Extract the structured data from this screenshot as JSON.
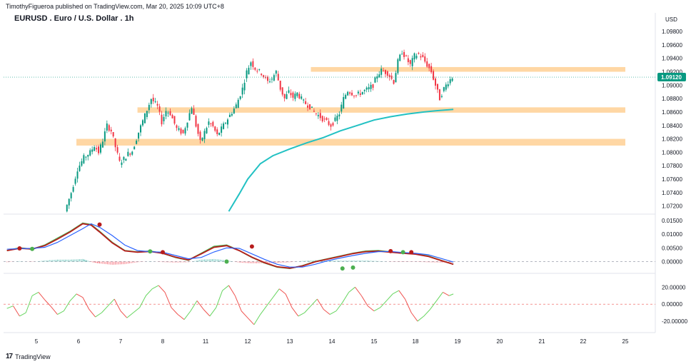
{
  "header": {
    "publisher_line": "TimothyFigueroa published on TradingView.com, Mar 20, 2025 10:09 UTC+8",
    "symbol_title": "EURUSD . Euro / U.S. Dollar . 1h"
  },
  "footer": {
    "brand": "TradingView",
    "logo_glyph": "17"
  },
  "colors": {
    "up_candle": "#089981",
    "down_candle": "#f23645",
    "zone": "#ffd39a",
    "ma_line": "#22c1c3",
    "osc_green": "#4caf50",
    "osc_red": "#b71c1c",
    "osc_blue": "#2962ff",
    "last_price_bg": "#089981"
  },
  "chart_data": [
    {
      "type": "candlestick",
      "title": "EURUSD . Euro / U.S. Dollar . 1h",
      "currency": "USD",
      "ylim": [
        1.071,
        1.0995
      ],
      "y_ticks": [
        "1.09800",
        "1.09600",
        "1.09400",
        "1.09200",
        "1.09000",
        "1.08800",
        "1.08600",
        "1.08400",
        "1.08200",
        "1.08000",
        "1.07800",
        "1.07600",
        "1.07400",
        "1.07200"
      ],
      "last_price": "1.09120",
      "x_ticks": [
        "5",
        "6",
        "7",
        "8",
        "11",
        "12",
        "13",
        "14",
        "15",
        "18",
        "19",
        "20",
        "21",
        "22",
        "25"
      ],
      "zones": [
        {
          "from_day": 11.5,
          "to_day": 21.7,
          "low": 1.092,
          "high": 1.0927
        },
        {
          "from_day": 7.4,
          "to_day": 21.7,
          "low": 1.0859,
          "high": 1.0867
        },
        {
          "from_day": 5.95,
          "to_day": 21.7,
          "low": 1.081,
          "high": 1.082
        }
      ],
      "price_path": [
        [
          5.7,
          1.0712
        ],
        [
          5.85,
          1.074
        ],
        [
          6.0,
          1.0775
        ],
        [
          6.15,
          1.0792
        ],
        [
          6.3,
          1.08
        ],
        [
          6.4,
          1.081
        ],
        [
          6.5,
          1.08
        ],
        [
          6.6,
          1.0818
        ],
        [
          6.7,
          1.084
        ],
        [
          6.8,
          1.0832
        ],
        [
          6.9,
          1.0808
        ],
        [
          7.0,
          1.0785
        ],
        [
          7.1,
          1.079
        ],
        [
          7.2,
          1.0798
        ],
        [
          7.3,
          1.0802
        ],
        [
          7.45,
          1.083
        ],
        [
          7.6,
          1.0855
        ],
        [
          7.75,
          1.088
        ],
        [
          7.9,
          1.0868
        ],
        [
          8.0,
          1.0845
        ],
        [
          8.1,
          1.0862
        ],
        [
          8.2,
          1.0858
        ],
        [
          8.35,
          1.0835
        ],
        [
          8.5,
          1.0828
        ],
        [
          8.6,
          1.0848
        ],
        [
          8.7,
          1.0868
        ],
        [
          8.8,
          1.084
        ],
        [
          8.9,
          1.0815
        ],
        [
          9.0,
          1.083
        ],
        [
          9.1,
          1.0845
        ],
        [
          9.2,
          1.0838
        ],
        [
          9.3,
          1.0825
        ],
        [
          9.45,
          1.084
        ],
        [
          9.6,
          1.0855
        ],
        [
          9.75,
          1.087
        ],
        [
          9.9,
          1.0895
        ],
        [
          10.0,
          1.092
        ],
        [
          10.1,
          1.0935
        ],
        [
          10.2,
          1.0925
        ],
        [
          10.35,
          1.0918
        ],
        [
          10.5,
          1.0905
        ],
        [
          10.6,
          1.091
        ],
        [
          10.7,
          1.092
        ],
        [
          10.8,
          1.0895
        ],
        [
          10.9,
          1.088
        ],
        [
          11.0,
          1.089
        ],
        [
          11.1,
          1.0882
        ],
        [
          11.2,
          1.0888
        ],
        [
          11.35,
          1.0875
        ],
        [
          11.5,
          1.0868
        ],
        [
          11.6,
          1.086
        ],
        [
          11.7,
          1.0855
        ],
        [
          11.8,
          1.085
        ],
        [
          11.9,
          1.0845
        ],
        [
          12.0,
          1.084
        ],
        [
          12.1,
          1.0848
        ],
        [
          12.2,
          1.0858
        ],
        [
          12.3,
          1.088
        ],
        [
          12.4,
          1.0892
        ],
        [
          12.5,
          1.0888
        ],
        [
          12.6,
          1.0885
        ],
        [
          12.75,
          1.089
        ],
        [
          12.9,
          1.0895
        ],
        [
          13.0,
          1.09
        ],
        [
          13.1,
          1.0915
        ],
        [
          13.2,
          1.0922
        ],
        [
          13.35,
          1.0918
        ],
        [
          13.5,
          1.0905
        ],
        [
          13.6,
          1.0935
        ],
        [
          13.7,
          1.095
        ],
        [
          13.8,
          1.094
        ],
        [
          13.9,
          1.093
        ],
        [
          14.0,
          1.0944
        ],
        [
          14.1,
          1.0946
        ],
        [
          14.2,
          1.094
        ],
        [
          14.3,
          1.093
        ],
        [
          14.4,
          1.092
        ],
        [
          14.5,
          1.09
        ],
        [
          14.6,
          1.088
        ],
        [
          14.7,
          1.0895
        ],
        [
          14.8,
          1.0905
        ],
        [
          14.9,
          1.0912
        ]
      ],
      "moving_average": [
        [
          9.55,
          1.0712
        ],
        [
          9.8,
          1.0738
        ],
        [
          10.0,
          1.076
        ],
        [
          10.3,
          1.0783
        ],
        [
          10.6,
          1.0795
        ],
        [
          11.0,
          1.0805
        ],
        [
          11.4,
          1.0814
        ],
        [
          11.8,
          1.0822
        ],
        [
          12.2,
          1.0832
        ],
        [
          12.6,
          1.084
        ],
        [
          13.0,
          1.0848
        ],
        [
          13.4,
          1.0853
        ],
        [
          13.8,
          1.0857
        ],
        [
          14.2,
          1.086
        ],
        [
          14.5,
          1.0862
        ],
        [
          14.9,
          1.0864
        ]
      ]
    },
    {
      "type": "line",
      "title": "",
      "ylim": [
        -0.003,
        0.016
      ],
      "y_ticks": [
        "0.01500",
        "0.01000",
        "0.00500",
        "0.00000"
      ],
      "zero_label": "0.00000",
      "x": [
        4.3,
        4.6,
        4.9,
        5.2,
        5.5,
        5.8,
        6.1,
        6.3,
        6.5,
        6.8,
        7.1,
        7.4,
        7.7,
        8.0,
        8.3,
        8.6,
        8.9,
        9.2,
        9.5,
        9.8,
        10.1,
        10.4,
        10.7,
        11.0,
        11.3,
        11.6,
        11.9,
        12.2,
        12.5,
        12.8,
        13.1,
        13.4,
        13.7,
        14.0,
        14.3,
        14.6,
        14.9
      ],
      "series": [
        {
          "color": "#4caf50",
          "values": [
            0.004,
            0.005,
            0.0045,
            0.006,
            0.0085,
            0.011,
            0.014,
            0.0135,
            0.011,
            0.007,
            0.004,
            0.0035,
            0.0038,
            0.003,
            0.0015,
            0.0005,
            0.003,
            0.0055,
            0.006,
            0.004,
            0.0015,
            -0.0005,
            -0.002,
            -0.0025,
            -0.0015,
            0.0,
            0.001,
            0.002,
            0.003,
            0.0038,
            0.004,
            0.0035,
            0.003,
            0.0028,
            0.002,
            0.0005,
            -0.001
          ]
        },
        {
          "color": "#b71c1c",
          "values": [
            0.004,
            0.0048,
            0.0046,
            0.0058,
            0.0082,
            0.0108,
            0.0138,
            0.0133,
            0.0108,
            0.0068,
            0.0039,
            0.0034,
            0.0037,
            0.003,
            0.0016,
            0.0006,
            0.0028,
            0.0052,
            0.0058,
            0.004,
            0.0016,
            -0.0004,
            -0.0019,
            -0.0024,
            -0.0016,
            -0.0001,
            0.0009,
            0.0019,
            0.0029,
            0.0036,
            0.0038,
            0.0034,
            0.003,
            0.0027,
            0.0019,
            0.0004,
            -0.001
          ]
        },
        {
          "color": "#2962ff",
          "values": [
            0.0045,
            0.0047,
            0.0048,
            0.0052,
            0.007,
            0.0095,
            0.012,
            0.0138,
            0.0125,
            0.0095,
            0.006,
            0.004,
            0.0036,
            0.0034,
            0.0022,
            0.001,
            0.0015,
            0.0035,
            0.005,
            0.0048,
            0.0028,
            0.0008,
            -0.001,
            -0.002,
            -0.002,
            -0.001,
            0.0003,
            0.0013,
            0.0022,
            0.003,
            0.0036,
            0.0037,
            0.0033,
            0.003,
            0.0025,
            0.0012,
            -0.0002
          ]
        }
      ],
      "cross_markers": [
        {
          "x": 4.6,
          "y": 0.0048,
          "color": "#b71c1c"
        },
        {
          "x": 4.9,
          "y": 0.0046,
          "color": "#4caf50"
        },
        {
          "x": 6.5,
          "y": 0.0135,
          "color": "#b71c1c"
        },
        {
          "x": 7.7,
          "y": 0.0037,
          "color": "#4caf50"
        },
        {
          "x": 8.0,
          "y": 0.0034,
          "color": "#b71c1c"
        },
        {
          "x": 9.5,
          "y": 0.0,
          "color": "#4caf50"
        },
        {
          "x": 10.1,
          "y": 0.0055,
          "color": "#b71c1c"
        },
        {
          "x": 12.25,
          "y": -0.0025,
          "color": "#4caf50"
        },
        {
          "x": 12.5,
          "y": -0.0022,
          "color": "#4caf50"
        },
        {
          "x": 13.4,
          "y": 0.0038,
          "color": "#b71c1c"
        },
        {
          "x": 13.7,
          "y": 0.0034,
          "color": "#4caf50"
        },
        {
          "x": 13.9,
          "y": 0.0034,
          "color": "#b71c1c"
        }
      ]
    },
    {
      "type": "line",
      "title": "",
      "ylim": [
        -30,
        32
      ],
      "y_ticks": [
        "20.00000",
        "0.00000",
        "-20.00000"
      ],
      "up_color": "#66d55f",
      "down_color": "#ef5350",
      "x": [
        4.3,
        4.45,
        4.6,
        4.75,
        4.9,
        5.05,
        5.2,
        5.35,
        5.5,
        5.65,
        5.8,
        5.95,
        6.1,
        6.25,
        6.4,
        6.55,
        6.7,
        6.85,
        7.0,
        7.15,
        7.3,
        7.45,
        7.6,
        7.75,
        7.9,
        8.05,
        8.2,
        8.35,
        8.5,
        8.65,
        8.8,
        8.95,
        9.1,
        9.25,
        9.4,
        9.55,
        9.7,
        9.85,
        10.0,
        10.15,
        10.3,
        10.45,
        10.6,
        10.75,
        10.9,
        11.05,
        11.2,
        11.35,
        11.5,
        11.65,
        11.8,
        11.95,
        12.1,
        12.25,
        12.4,
        12.55,
        12.7,
        12.85,
        13.0,
        13.15,
        13.3,
        13.45,
        13.6,
        13.75,
        13.9,
        14.05,
        14.2,
        14.35,
        14.5,
        14.65,
        14.8,
        14.9
      ],
      "values": [
        -5,
        -2,
        -14,
        -10,
        10,
        14,
        5,
        -3,
        -12,
        -8,
        4,
        12,
        8,
        -6,
        -15,
        -10,
        -2,
        6,
        -8,
        -16,
        -10,
        -4,
        10,
        18,
        22,
        14,
        -4,
        -12,
        -18,
        -8,
        4,
        -6,
        -14,
        -4,
        16,
        22,
        10,
        -8,
        -16,
        -24,
        -12,
        -2,
        8,
        18,
        12,
        -4,
        -14,
        -10,
        -2,
        6,
        -6,
        -12,
        -8,
        2,
        14,
        20,
        10,
        -2,
        -8,
        -4,
        4,
        12,
        16,
        6,
        -10,
        -20,
        -14,
        -6,
        4,
        14,
        10,
        12
      ]
    }
  ]
}
